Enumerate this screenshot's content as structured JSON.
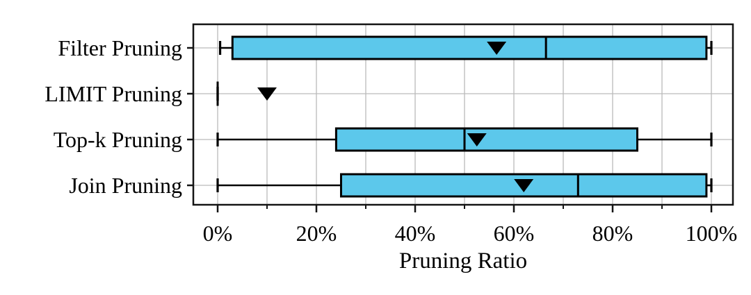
{
  "figure": {
    "background": "#ffffff"
  },
  "chart_data": {
    "type": "boxplot",
    "orientation": "horizontal",
    "title": "",
    "xlabel": "Pruning Ratio",
    "ylabel": "",
    "x_unit": "percent",
    "xlim": [
      -5,
      104.5
    ],
    "x_major_ticks": [
      0,
      20,
      40,
      60,
      80,
      100
    ],
    "x_tick_labels": [
      "0%",
      "20%",
      "40%",
      "60%",
      "80%",
      "100%"
    ],
    "x_minor_tick_step": 10,
    "grid": {
      "vertical_every_pct": 10,
      "horizontal_at_each_category": true
    },
    "legend": null,
    "categories": [
      "Filter Pruning",
      "LIMIT Pruning",
      "Top-k Pruning",
      "Join Pruning"
    ],
    "series": [
      {
        "name": "Filter Pruning",
        "whisker_low": 0.5,
        "q1": 3,
        "median": 66.5,
        "q3": 99,
        "whisker_high": 100,
        "mean": 56.5
      },
      {
        "name": "LIMIT Pruning",
        "whisker_low": 0,
        "q1": 0,
        "median": 0,
        "q3": 0,
        "whisker_high": 0,
        "mean": 10
      },
      {
        "name": "Top-k Pruning",
        "whisker_low": 0,
        "q1": 24,
        "median": 50,
        "q3": 85,
        "whisker_high": 100,
        "mean": 52.5
      },
      {
        "name": "Join Pruning",
        "whisker_low": 0,
        "q1": 25,
        "median": 73,
        "q3": 99,
        "whisker_high": 100,
        "mean": 62
      }
    ],
    "mean_marker_shape": "triangle-down",
    "colors": {
      "box_fill": "#5CC8EB",
      "box_edge": "#000000",
      "whisker": "#000000",
      "median": "#000000",
      "mean_marker": "#000000",
      "grid": "#bababa",
      "spine": "#141414",
      "text": "#000000"
    }
  }
}
